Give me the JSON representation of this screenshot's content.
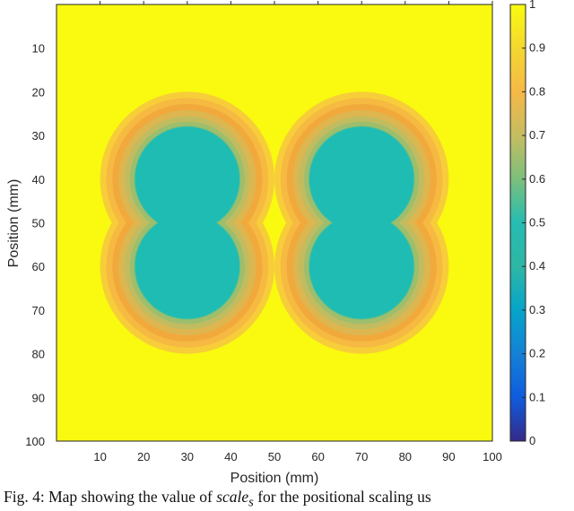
{
  "chart_data": {
    "type": "heatmap",
    "title": "",
    "xlabel": "Position (mm)",
    "ylabel": "Position (mm)",
    "xlim": [
      0,
      100
    ],
    "ylim": [
      0,
      100
    ],
    "y_reversed": true,
    "grid": false,
    "x_ticks": [
      "10",
      "20",
      "30",
      "40",
      "50",
      "60",
      "70",
      "80",
      "90",
      "100"
    ],
    "y_ticks": [
      "10",
      "20",
      "30",
      "40",
      "50",
      "60",
      "70",
      "80",
      "90",
      "100"
    ],
    "colorbar": {
      "range": [
        0,
        1
      ],
      "ticks": [
        "0",
        "0.1",
        "0.2",
        "0.3",
        "0.4",
        "0.5",
        "0.6",
        "0.7",
        "0.8",
        "0.9",
        "1"
      ],
      "colormap": "parula"
    },
    "background_value": 1.0,
    "inner_value": 0.52,
    "centers": [
      {
        "x": 30,
        "y": 40
      },
      {
        "x": 30,
        "y": 60
      },
      {
        "x": 70,
        "y": 40
      },
      {
        "x": 70,
        "y": 60
      }
    ],
    "inner_radius_mm": 12,
    "outer_radius_mm": 20
  },
  "caption": {
    "prefix": "Fig. 4: Map showing the value of ",
    "symbol": "scale",
    "subscript": "s",
    "suffix": " for the positional scaling us"
  },
  "colors": {
    "background_yellow": "#f9fa0f",
    "inner_teal": "#1fbcb3",
    "edge_orange": "#f1a93c"
  }
}
